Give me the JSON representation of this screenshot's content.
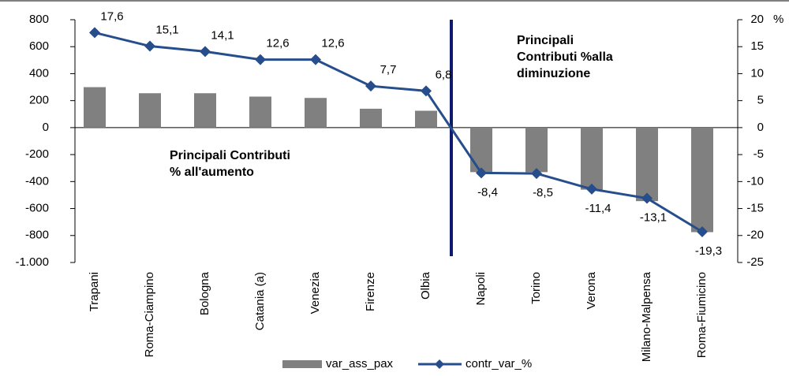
{
  "chart_data": {
    "type": "bar_line",
    "categories": [
      "Trapani",
      "Roma-Ciampino",
      "Bologna",
      "Catania (a)",
      "Venezia",
      "Firenze",
      "Olbia",
      "Napoli",
      "Torino",
      "Verona",
      "Milano-Malpensa",
      "Roma-Fiumicino"
    ],
    "series": [
      {
        "name": "var_ass_pax",
        "type": "bar",
        "color": "#808080",
        "values": [
          300,
          255,
          255,
          230,
          220,
          140,
          125,
          -330,
          -330,
          -460,
          -545,
          -775
        ]
      },
      {
        "name": "contr_var_%",
        "type": "line",
        "axis": "y2",
        "color": "#264d8c",
        "values": [
          17.6,
          15.1,
          14.1,
          12.6,
          12.6,
          7.7,
          6.8,
          -8.4,
          -8.5,
          -11.4,
          -13.1,
          -19.3
        ],
        "value_labels": [
          "17,6",
          "15,1",
          "14,1",
          "12,6",
          "12,6",
          "7,7",
          "6,8",
          "-8,4",
          "-8,5",
          "-11,4",
          "-13,1",
          "-19,3"
        ]
      }
    ],
    "ylim": [
      -1000,
      800
    ],
    "yticks": [
      800,
      600,
      400,
      200,
      0,
      -200,
      -400,
      -600,
      -800,
      {
        "value": -1000,
        "label": "-1.000"
      }
    ],
    "y2lim": [
      -25,
      20
    ],
    "y2ticks": [
      20,
      15,
      10,
      5,
      0,
      -5,
      -10,
      -15,
      -20,
      -25
    ],
    "y2_unit": "%",
    "annotations": [
      [
        "Principali",
        "Contributi %alla",
        "diminuzione"
      ],
      [
        "Principali Contributi",
        "% all'aumento"
      ]
    ],
    "legend": "bottom"
  }
}
